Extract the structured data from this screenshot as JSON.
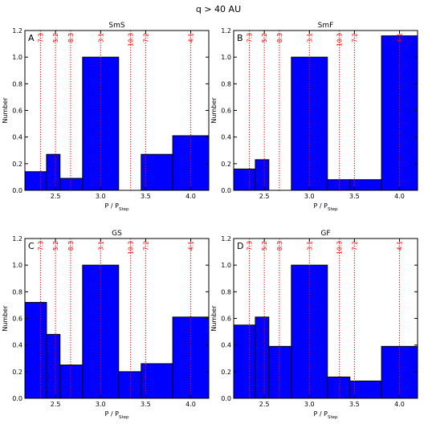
{
  "figure": {
    "title": "q > 40 AU"
  },
  "chart_data": [
    {
      "type": "bar",
      "panel": "A",
      "title": "SmS",
      "xlabel": "P / P_Step",
      "ylabel": "Number",
      "xlim": [
        2.16,
        4.2
      ],
      "ylim": [
        0,
        1.2
      ],
      "xticks": [
        "2.5",
        "3.0",
        "3.5",
        "4.0"
      ],
      "yticks": [
        "0.0",
        "0.2",
        "0.4",
        "0.6",
        "0.8",
        "1.0",
        "1.2"
      ],
      "bins": [
        {
          "x0": 2.16,
          "x1": 2.4,
          "value": 0.14
        },
        {
          "x0": 2.4,
          "x1": 2.55,
          "value": 0.27
        },
        {
          "x0": 2.55,
          "x1": 2.8,
          "value": 0.09
        },
        {
          "x0": 2.8,
          "x1": 3.2,
          "value": 1.0
        },
        {
          "x0": 3.2,
          "x1": 3.45,
          "value": 0.0
        },
        {
          "x0": 3.45,
          "x1": 3.8,
          "value": 0.27
        },
        {
          "x0": 3.8,
          "x1": 4.2,
          "value": 0.41
        }
      ],
      "resonances": [
        {
          "label": "7:3",
          "x": 2.333
        },
        {
          "label": "5:2",
          "x": 2.5
        },
        {
          "label": "8:3",
          "x": 2.667
        },
        {
          "label": "3:1",
          "x": 3.0
        },
        {
          "label": "10:3",
          "x": 3.333
        },
        {
          "label": "7:2",
          "x": 3.5
        },
        {
          "label": "4:1",
          "x": 4.0
        }
      ]
    },
    {
      "type": "bar",
      "panel": "B",
      "title": "SmF",
      "xlabel": "P / P_Step",
      "ylabel": "Number",
      "xlim": [
        2.16,
        4.2
      ],
      "ylim": [
        0,
        1.2
      ],
      "xticks": [
        "2.5",
        "3.0",
        "3.5",
        "4.0"
      ],
      "yticks": [
        "0.0",
        "0.2",
        "0.4",
        "0.6",
        "0.8",
        "1.0",
        "1.2"
      ],
      "bins": [
        {
          "x0": 2.16,
          "x1": 2.4,
          "value": 0.16
        },
        {
          "x0": 2.4,
          "x1": 2.55,
          "value": 0.23
        },
        {
          "x0": 2.55,
          "x1": 2.8,
          "value": 0.0
        },
        {
          "x0": 2.8,
          "x1": 3.2,
          "value": 1.0
        },
        {
          "x0": 3.2,
          "x1": 3.45,
          "value": 0.08
        },
        {
          "x0": 3.45,
          "x1": 3.8,
          "value": 0.08
        },
        {
          "x0": 3.8,
          "x1": 4.2,
          "value": 1.16
        }
      ],
      "resonances": [
        {
          "label": "7:3",
          "x": 2.333
        },
        {
          "label": "5:2",
          "x": 2.5
        },
        {
          "label": "8:3",
          "x": 2.667
        },
        {
          "label": "3:1",
          "x": 3.0
        },
        {
          "label": "10:3",
          "x": 3.333
        },
        {
          "label": "7:2",
          "x": 3.5
        },
        {
          "label": "4:1",
          "x": 4.0
        }
      ]
    },
    {
      "type": "bar",
      "panel": "C",
      "title": "GS",
      "xlabel": "P / P_Step",
      "ylabel": "Number",
      "xlim": [
        2.16,
        4.2
      ],
      "ylim": [
        0,
        1.2
      ],
      "xticks": [
        "2.5",
        "3.0",
        "3.5",
        "4.0"
      ],
      "yticks": [
        "0.0",
        "0.2",
        "0.4",
        "0.6",
        "0.8",
        "1.0",
        "1.2"
      ],
      "bins": [
        {
          "x0": 2.16,
          "x1": 2.4,
          "value": 0.72
        },
        {
          "x0": 2.4,
          "x1": 2.55,
          "value": 0.48
        },
        {
          "x0": 2.55,
          "x1": 2.8,
          "value": 0.25
        },
        {
          "x0": 2.8,
          "x1": 3.2,
          "value": 1.0
        },
        {
          "x0": 3.2,
          "x1": 3.45,
          "value": 0.2
        },
        {
          "x0": 3.45,
          "x1": 3.8,
          "value": 0.26
        },
        {
          "x0": 3.8,
          "x1": 4.2,
          "value": 0.61
        }
      ],
      "resonances": [
        {
          "label": "7:3",
          "x": 2.333
        },
        {
          "label": "5:2",
          "x": 2.5
        },
        {
          "label": "8:3",
          "x": 2.667
        },
        {
          "label": "3:1",
          "x": 3.0
        },
        {
          "label": "10:3",
          "x": 3.333
        },
        {
          "label": "7:2",
          "x": 3.5
        },
        {
          "label": "4:1",
          "x": 4.0
        }
      ]
    },
    {
      "type": "bar",
      "panel": "D",
      "title": "GF",
      "xlabel": "P / P_Step",
      "ylabel": "Number",
      "xlim": [
        2.16,
        4.2
      ],
      "ylim": [
        0,
        1.2
      ],
      "xticks": [
        "2.5",
        "3.0",
        "3.5",
        "4.0"
      ],
      "yticks": [
        "0.0",
        "0.2",
        "0.4",
        "0.6",
        "0.8",
        "1.0",
        "1.2"
      ],
      "bins": [
        {
          "x0": 2.16,
          "x1": 2.4,
          "value": 0.55
        },
        {
          "x0": 2.4,
          "x1": 2.55,
          "value": 0.61
        },
        {
          "x0": 2.55,
          "x1": 2.8,
          "value": 0.39
        },
        {
          "x0": 2.8,
          "x1": 3.2,
          "value": 1.0
        },
        {
          "x0": 3.2,
          "x1": 3.45,
          "value": 0.16
        },
        {
          "x0": 3.45,
          "x1": 3.8,
          "value": 0.13
        },
        {
          "x0": 3.8,
          "x1": 4.2,
          "value": 0.39
        }
      ],
      "resonances": [
        {
          "label": "7:3",
          "x": 2.333
        },
        {
          "label": "5:2",
          "x": 2.5
        },
        {
          "label": "8:3",
          "x": 2.667
        },
        {
          "label": "3:1",
          "x": 3.0
        },
        {
          "label": "10:3",
          "x": 3.333
        },
        {
          "label": "7:2",
          "x": 3.5
        },
        {
          "label": "4:1",
          "x": 4.0
        }
      ]
    }
  ],
  "colors": {
    "bar_fill": "#0000ff",
    "bar_edge": "#000000",
    "resonance_line": "#ff0000"
  }
}
